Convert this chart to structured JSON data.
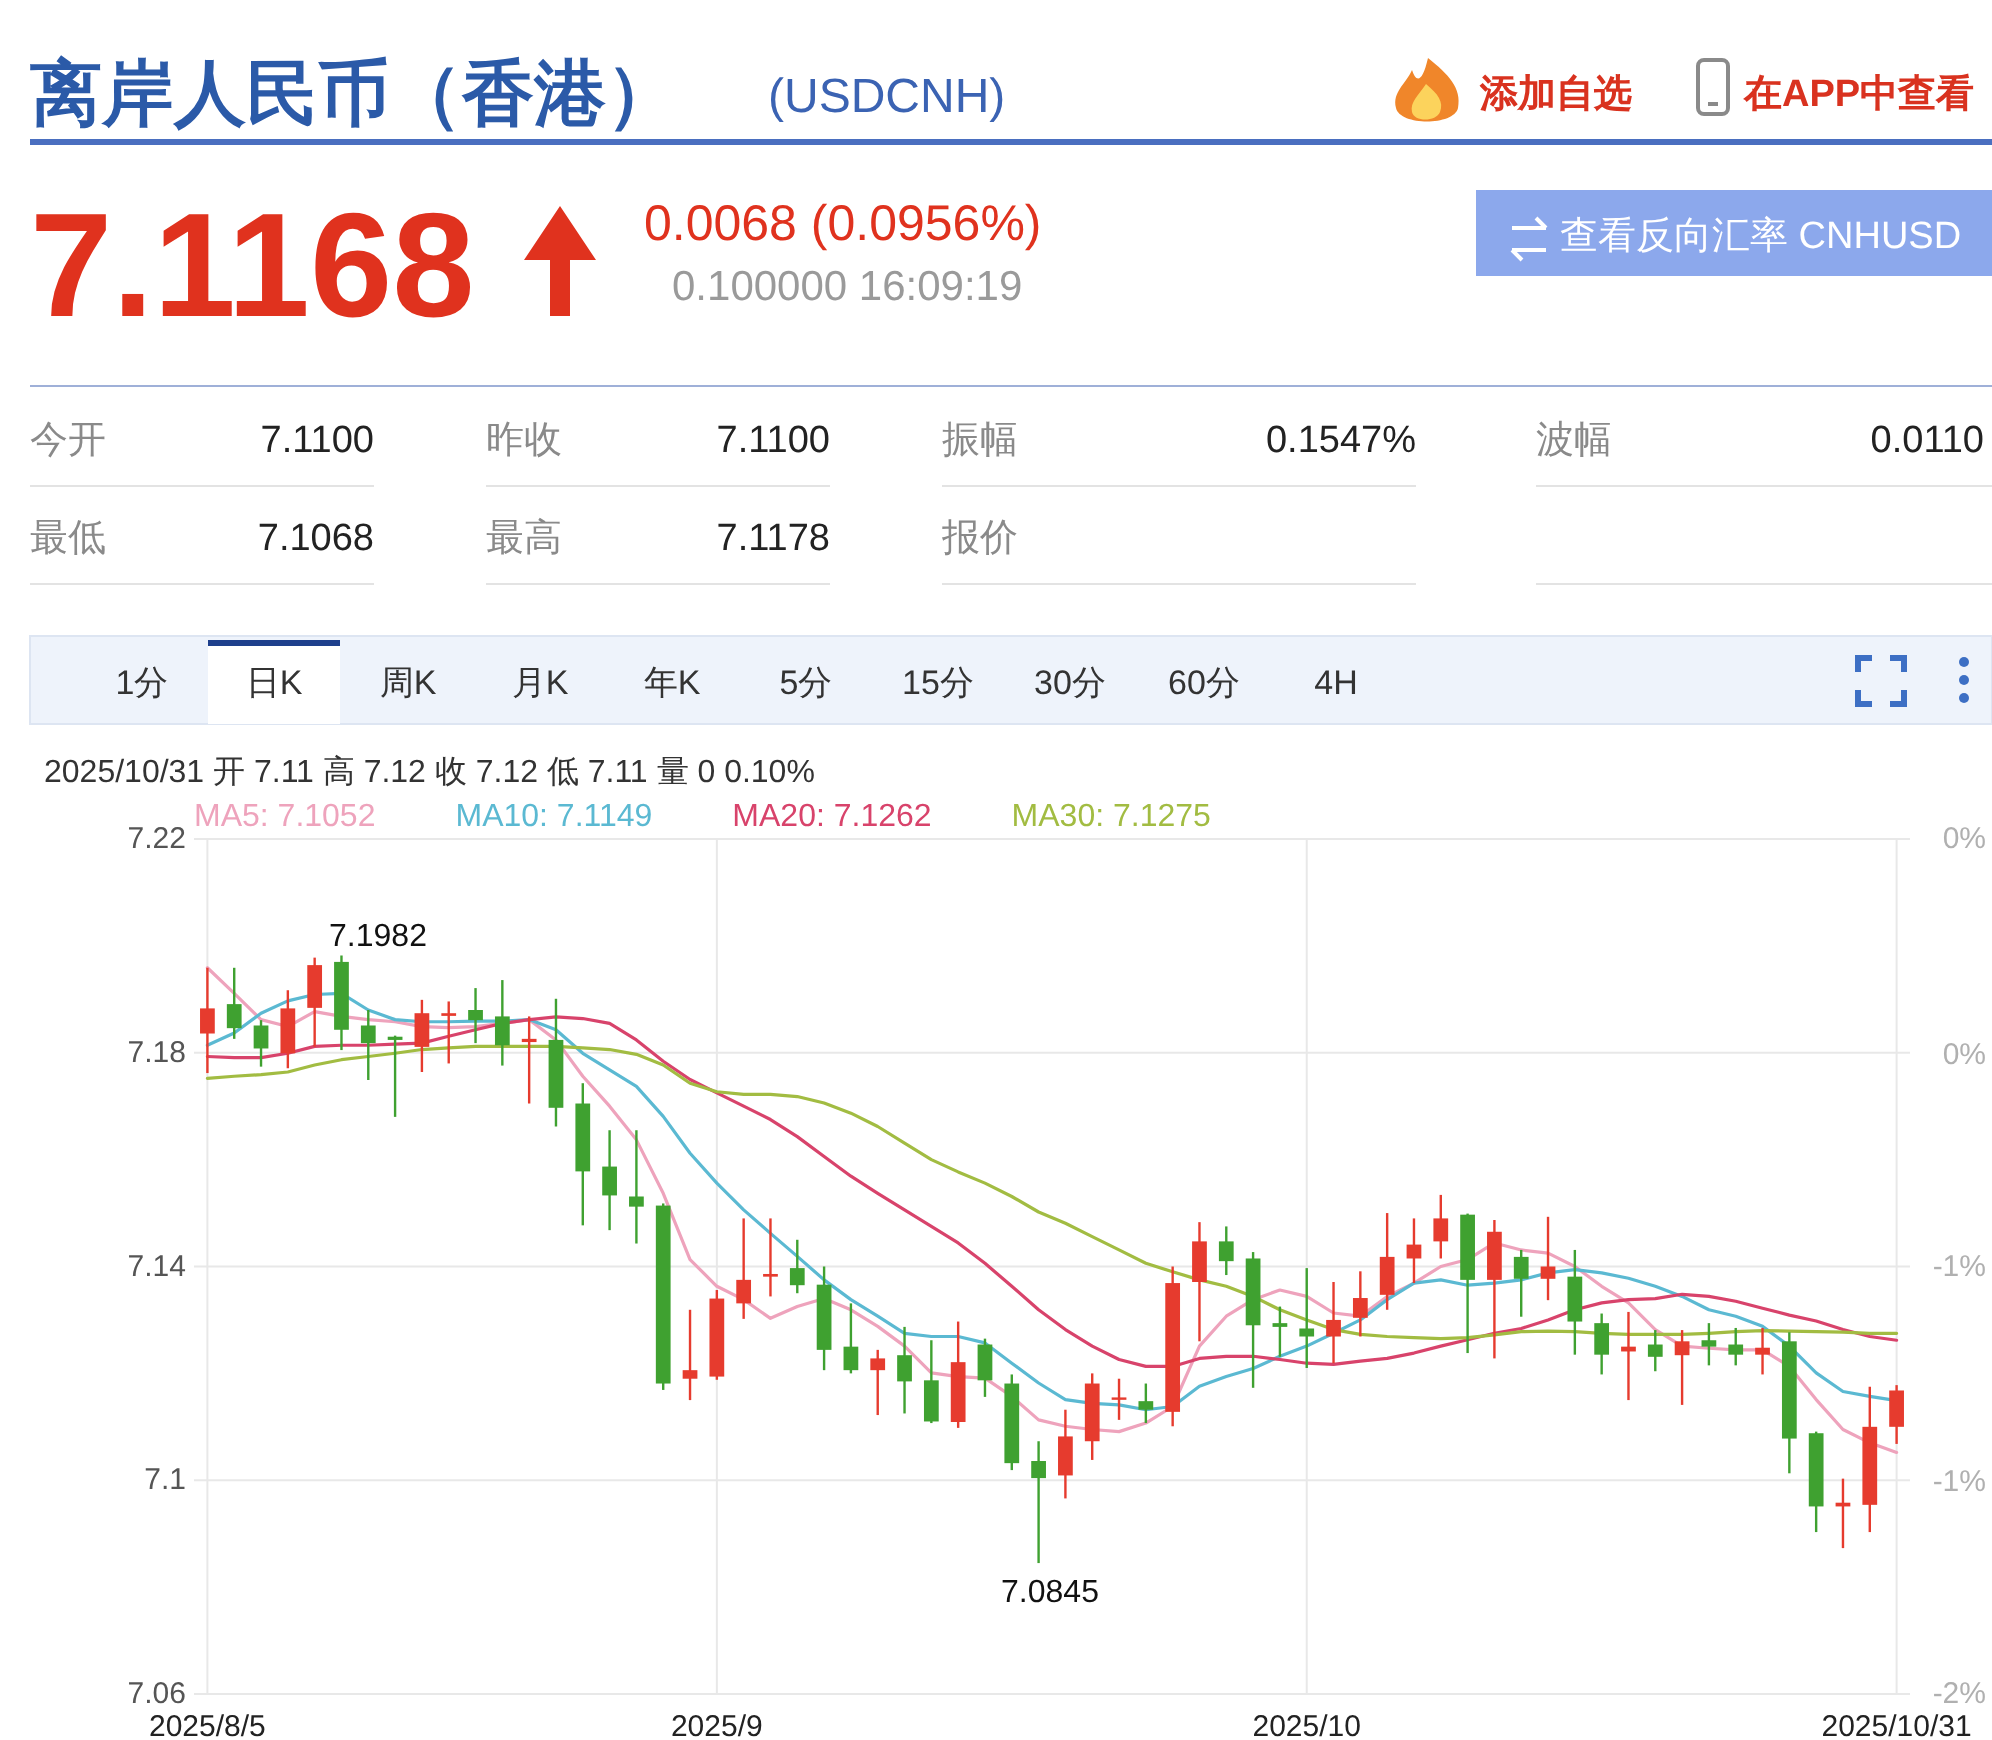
{
  "chart_data": {
    "type": "candlestick",
    "title": "离岸人民币（香港）",
    "subtitle": "(USDCNH)",
    "categories": [
      "2025/8/5",
      null,
      null,
      null,
      null,
      null,
      null,
      null,
      null,
      null,
      null,
      null,
      null,
      null,
      null,
      null,
      null,
      null,
      null,
      "2025/9",
      null,
      null,
      null,
      null,
      null,
      null,
      null,
      null,
      null,
      null,
      null,
      null,
      null,
      null,
      null,
      null,
      null,
      null,
      null,
      null,
      null,
      "2025/10",
      null,
      null,
      null,
      null,
      null,
      null,
      null,
      null,
      null,
      null,
      null,
      null,
      null,
      null,
      null,
      null,
      null,
      null,
      null,
      null,
      null,
      "2025/10/31"
    ],
    "ohlc": [
      [
        7.1836,
        7.1959,
        7.1762,
        7.1883
      ],
      [
        7.1891,
        7.1959,
        7.1826,
        7.1846
      ],
      [
        7.1851,
        7.1861,
        7.1774,
        7.1808
      ],
      [
        7.1799,
        7.1917,
        7.1771,
        7.1883
      ],
      [
        7.1884,
        7.1978,
        7.1811,
        7.1964
      ],
      [
        7.197,
        7.1982,
        7.1805,
        7.1843
      ],
      [
        7.1851,
        7.188,
        7.1749,
        7.1818
      ],
      [
        7.183,
        7.1832,
        7.168,
        7.1824
      ],
      [
        7.1811,
        7.1899,
        7.1764,
        7.1874
      ],
      [
        7.1869,
        7.1896,
        7.178,
        7.1874
      ],
      [
        7.188,
        7.1921,
        7.1818,
        7.1861
      ],
      [
        7.1868,
        7.1936,
        7.1776,
        7.1814
      ],
      [
        7.182,
        7.1868,
        7.1705,
        7.1826
      ],
      [
        7.1824,
        7.1901,
        7.1662,
        7.1697
      ],
      [
        7.1705,
        7.1743,
        7.1477,
        7.1578
      ],
      [
        7.1587,
        7.1655,
        7.1468,
        7.1533
      ],
      [
        7.1531,
        7.1655,
        7.1443,
        7.1512
      ],
      [
        7.1514,
        7.1518,
        7.1169,
        7.1181
      ],
      [
        7.119,
        7.1319,
        7.115,
        7.1206
      ],
      [
        7.1194,
        7.1356,
        7.1188,
        7.134
      ],
      [
        7.1331,
        7.149,
        7.1302,
        7.1375
      ],
      [
        7.1381,
        7.149,
        7.1344,
        7.1386
      ],
      [
        7.1397,
        7.145,
        7.135,
        7.1365
      ],
      [
        7.1366,
        7.14,
        7.1206,
        7.1244
      ],
      [
        7.125,
        7.1331,
        7.12,
        7.1206
      ],
      [
        7.1206,
        7.1244,
        7.1122,
        7.1228
      ],
      [
        7.1234,
        7.1287,
        7.1125,
        7.1185
      ],
      [
        7.1187,
        7.1262,
        7.1107,
        7.111
      ],
      [
        7.1109,
        7.1297,
        7.1098,
        7.1221
      ],
      [
        7.1254,
        7.1265,
        7.1156,
        7.1187
      ],
      [
        7.1181,
        7.1198,
        7.1019,
        7.1032
      ],
      [
        7.1036,
        7.1073,
        7.0845,
        7.1004
      ],
      [
        7.1009,
        7.1132,
        7.0966,
        7.1082
      ],
      [
        7.1073,
        7.12,
        7.1038,
        7.1181
      ],
      [
        7.1151,
        7.119,
        7.1113,
        7.1155
      ],
      [
        7.1148,
        7.1181,
        7.1107,
        7.1132
      ],
      [
        7.1128,
        7.14,
        7.1101,
        7.1369
      ],
      [
        7.1371,
        7.1483,
        7.126,
        7.1447
      ],
      [
        7.1447,
        7.1475,
        7.1384,
        7.141
      ],
      [
        7.1415,
        7.1427,
        7.1173,
        7.129
      ],
      [
        7.1294,
        7.1325,
        7.1231,
        7.1287
      ],
      [
        7.1284,
        7.1397,
        7.121,
        7.1269
      ],
      [
        7.1269,
        7.1371,
        7.1219,
        7.13
      ],
      [
        7.1304,
        7.1391,
        7.1269,
        7.1341
      ],
      [
        7.1347,
        7.15,
        7.1319,
        7.1418
      ],
      [
        7.1415,
        7.149,
        7.1369,
        7.1441
      ],
      [
        7.1447,
        7.1534,
        7.1415,
        7.149
      ],
      [
        7.1497,
        7.1499,
        7.1238,
        7.1375
      ],
      [
        7.1375,
        7.1487,
        7.1228,
        7.1465
      ],
      [
        7.1418,
        7.1431,
        7.1306,
        7.1377
      ],
      [
        7.1377,
        7.1493,
        7.1337,
        7.14
      ],
      [
        7.1381,
        7.1431,
        7.1235,
        7.1297
      ],
      [
        7.1294,
        7.1312,
        7.1198,
        7.1235
      ],
      [
        7.1241,
        7.1315,
        7.115,
        7.125
      ],
      [
        7.1254,
        7.1281,
        7.1204,
        7.1231
      ],
      [
        7.1234,
        7.1281,
        7.1141,
        7.126
      ],
      [
        7.1262,
        7.1294,
        7.1215,
        7.125
      ],
      [
        7.1254,
        7.1285,
        7.1215,
        7.1235
      ],
      [
        7.1235,
        7.1285,
        7.1198,
        7.1248
      ],
      [
        7.126,
        7.1277,
        7.1013,
        7.1078
      ],
      [
        7.1088,
        7.1091,
        7.0903,
        7.0951
      ],
      [
        7.0951,
        7.1003,
        7.0873,
        7.0958
      ],
      [
        7.0954,
        7.1175,
        7.0903,
        7.11
      ],
      [
        7.11,
        7.1178,
        7.1068,
        7.1168
      ]
    ],
    "colors": [
      "#e63b2e",
      "#3fa130",
      "#3fa130",
      "#e63b2e",
      "#e63b2e",
      "#3fa130",
      "#3fa130",
      "#3fa130",
      "#e63b2e",
      "#e63b2e",
      "#3fa130",
      "#3fa130",
      "#e63b2e",
      "#3fa130",
      "#3fa130",
      "#3fa130",
      "#3fa130",
      "#3fa130",
      "#e63b2e",
      "#e63b2e",
      "#e63b2e",
      "#e63b2e",
      "#3fa130",
      "#3fa130",
      "#3fa130",
      "#e63b2e",
      "#3fa130",
      "#3fa130",
      "#e63b2e",
      "#3fa130",
      "#3fa130",
      "#3fa130",
      "#e63b2e",
      "#e63b2e",
      "#e63b2e",
      "#3fa130",
      "#e63b2e",
      "#e63b2e",
      "#3fa130",
      "#3fa130",
      "#3fa130",
      "#3fa130",
      "#e63b2e",
      "#e63b2e",
      "#e63b2e",
      "#e63b2e",
      "#e63b2e",
      "#3fa130",
      "#e63b2e",
      "#3fa130",
      "#e63b2e",
      "#3fa130",
      "#3fa130",
      "#e63b2e",
      "#3fa130",
      "#e63b2e",
      "#3fa130",
      "#3fa130",
      "#e63b2e",
      "#3fa130",
      "#3fa130",
      "#e63b2e",
      "#e63b2e",
      "#e63b2e"
    ],
    "series": [
      {
        "name": "MA5: 7.1052",
        "type": "line",
        "color": "#eea3bc",
        "values": [
          7.1959,
          7.1911,
          7.1862,
          7.1849,
          7.1877,
          7.1868,
          7.1862,
          7.1858,
          7.1849,
          7.1847,
          7.1849,
          7.1855,
          7.1862,
          7.1824,
          7.1756,
          7.17,
          7.1637,
          7.1537,
          7.1413,
          7.1363,
          7.1338,
          7.1303,
          7.1325,
          7.134,
          7.1319,
          7.1288,
          7.1251,
          7.1201,
          7.1194,
          7.1191,
          7.1157,
          7.1113,
          7.1101,
          7.1095,
          7.1091,
          7.1107,
          7.1138,
          7.1251,
          7.1307,
          7.1338,
          7.1356,
          7.1344,
          7.1313,
          7.1307,
          7.1344,
          7.1369,
          7.14,
          7.1413,
          7.1444,
          7.1431,
          7.1425,
          7.14,
          7.1363,
          7.1332,
          7.1282,
          7.1251,
          7.1247,
          7.1244,
          7.1244,
          7.1213,
          7.1151,
          7.1095,
          7.107,
          7.1052
        ]
      },
      {
        "name": "MA10: 7.1149",
        "type": "line",
        "color": "#5bb9d2",
        "values": [
          7.1814,
          7.1837,
          7.1874,
          7.1897,
          7.1909,
          7.1911,
          7.188,
          7.1862,
          7.1858,
          7.1858,
          7.1859,
          7.1859,
          7.1862,
          7.1843,
          7.1799,
          7.1768,
          7.1737,
          7.1681,
          7.1612,
          7.1556,
          7.1506,
          7.1462,
          7.1419,
          7.1375,
          7.1338,
          7.1307,
          7.1275,
          7.1269,
          7.1269,
          7.1257,
          7.1219,
          7.1182,
          7.1151,
          7.1144,
          7.1141,
          7.1132,
          7.1138,
          7.1176,
          7.1194,
          7.1209,
          7.1232,
          7.1251,
          7.1275,
          7.13,
          7.1338,
          7.1369,
          7.1375,
          7.1365,
          7.1369,
          7.1375,
          7.1388,
          7.1394,
          7.1388,
          7.1378,
          7.1363,
          7.1344,
          7.1319,
          7.1307,
          7.1288,
          7.1251,
          7.1201,
          7.1166,
          7.1157,
          7.1149
        ]
      },
      {
        "name": "MA20: 7.1262",
        "type": "line",
        "color": "#d8436b",
        "values": [
          7.1793,
          7.1791,
          7.1791,
          7.1799,
          7.1812,
          7.1814,
          7.1814,
          7.1816,
          7.1818,
          7.1831,
          7.1843,
          7.1855,
          7.1862,
          7.1867,
          7.1864,
          7.1855,
          7.1824,
          7.1784,
          7.175,
          7.1725,
          7.17,
          7.1675,
          7.1643,
          7.1606,
          7.1569,
          7.1537,
          7.1506,
          7.1475,
          7.1444,
          7.1406,
          7.1363,
          7.1319,
          7.1282,
          7.1251,
          7.1226,
          7.1213,
          7.1213,
          7.1228,
          7.1232,
          7.1232,
          7.1226,
          7.1219,
          7.1217,
          7.1223,
          7.1228,
          7.1238,
          7.1251,
          7.1263,
          7.1275,
          7.1284,
          7.13,
          7.1319,
          7.1332,
          7.1338,
          7.134,
          7.1348,
          7.1344,
          7.1335,
          7.1322,
          7.1309,
          7.1298,
          7.1282,
          7.1269,
          7.1262
        ]
      },
      {
        "name": "MA30: 7.1275",
        "type": "line",
        "color": "#a2bc42",
        "values": [
          7.1752,
          7.1756,
          7.1759,
          7.1764,
          7.1777,
          7.1787,
          7.1793,
          7.1799,
          7.1806,
          7.1809,
          7.1812,
          7.1812,
          7.1812,
          7.1812,
          7.1809,
          7.1806,
          7.1797,
          7.1777,
          7.1743,
          7.1727,
          7.1722,
          7.1722,
          7.1718,
          7.1706,
          7.1687,
          7.1662,
          7.1631,
          7.16,
          7.1577,
          7.1556,
          7.1531,
          7.1502,
          7.1481,
          7.1456,
          7.1431,
          7.1406,
          7.139,
          7.1375,
          7.1363,
          7.1344,
          7.1319,
          7.13,
          7.1282,
          7.1273,
          7.1269,
          7.1267,
          7.1265,
          7.1267,
          7.1272,
          7.1278,
          7.1279,
          7.1278,
          7.1275,
          7.1273,
          7.1273,
          7.1273,
          7.1275,
          7.1278,
          7.128,
          7.1279,
          7.1278,
          7.1277,
          7.1275,
          7.1275
        ]
      }
    ],
    "ylim": [
      7.06,
      7.22
    ],
    "yticks": [
      7.06,
      7.1,
      7.14,
      7.18,
      7.22
    ],
    "y2lim": [
      -1.78,
      0.44
    ],
    "y2ticks": [
      {
        "value": -1.78,
        "label": "-2%"
      },
      {
        "value": -1.23,
        "label": "-1%"
      },
      {
        "value": -0.67,
        "label": "-1%"
      },
      {
        "value": -0.12,
        "label": "0%"
      },
      {
        "value": 0.44,
        "label": "0%"
      }
    ],
    "grid": true,
    "legend": "top left",
    "annotations": [
      "添加自选",
      "在APP中查看",
      "7.1168",
      "0.0068 (0.0956%)",
      "0.100000 16:09:19",
      "查看反向汇率 CNHUSD",
      "今开",
      "7.1100",
      "昨收",
      "7.1100",
      "振幅",
      "0.1547%",
      "波幅",
      "0.0110",
      "最低",
      "7.1068",
      "最高",
      "7.1178",
      "报价",
      "1分",
      "日K",
      "周K",
      "月K",
      "年K",
      "5分",
      "15分",
      "30分",
      "60分",
      "4H",
      "2025/10/31 开 7.11 高 7.12 收 7.12 低 7.11 量 0 0.10%",
      "7.1982",
      "7.0845"
    ]
  }
}
